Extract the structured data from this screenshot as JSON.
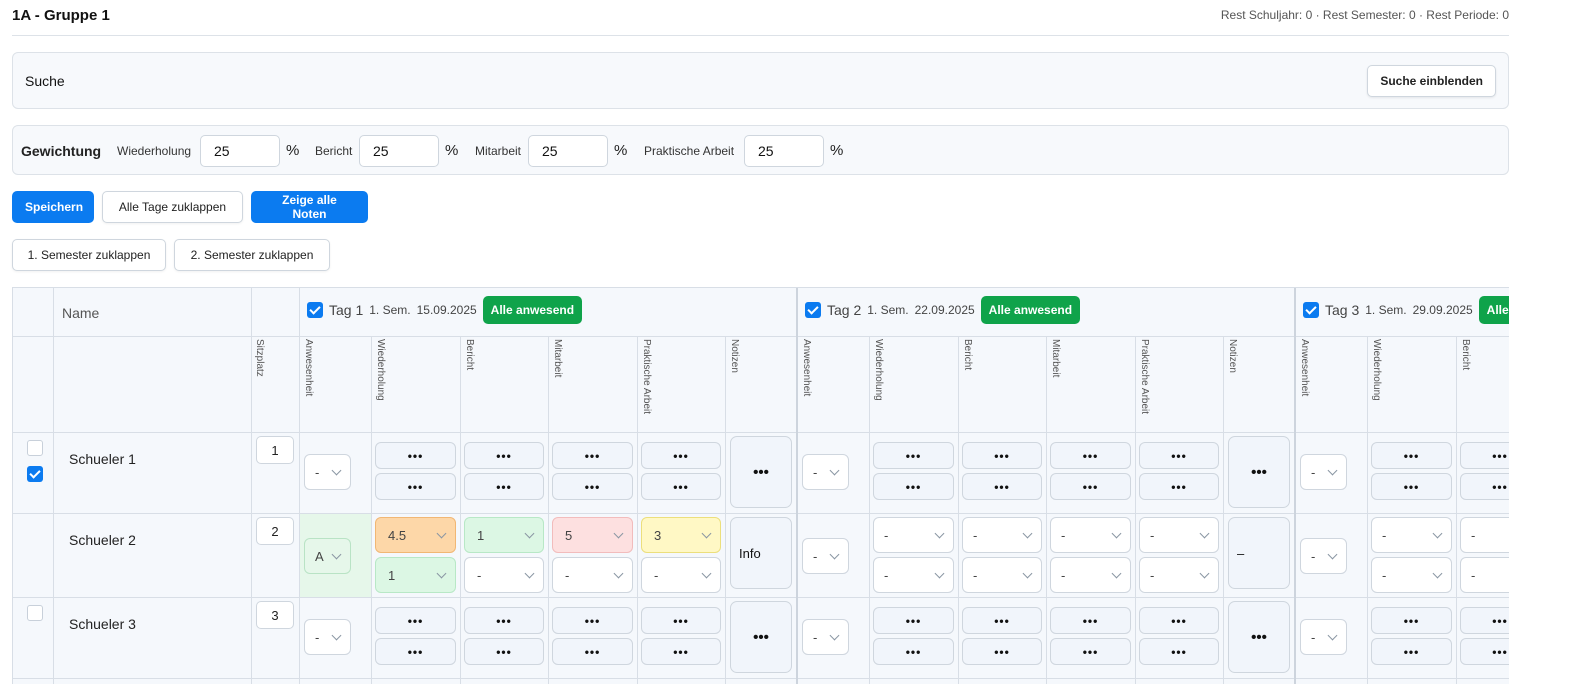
{
  "header": {
    "title": "1A - Gruppe 1",
    "rest_info": "Rest Schuljahr: 0 · Rest Semester: 0 · Rest Periode: 0"
  },
  "search": {
    "title": "Suche",
    "toggle_label": "Suche einblenden"
  },
  "weights": {
    "title": "Gewichtung",
    "items": [
      {
        "label": "Wiederholung",
        "value": "25",
        "unit": "%"
      },
      {
        "label": "Bericht",
        "value": "25",
        "unit": "%"
      },
      {
        "label": "Mitarbeit",
        "value": "25",
        "unit": "%"
      },
      {
        "label": "Praktische Arbeit",
        "value": "25",
        "unit": "%"
      }
    ]
  },
  "toolbar": {
    "save": "Speichern",
    "collapse_days": "Alle Tage zuklappen",
    "show_grades": "Zeige alle Noten",
    "collapse_sem1": "1. Semester zuklappen",
    "collapse_sem2": "2. Semester zuklappen"
  },
  "table": {
    "name_header": "Name",
    "seat_header": "Sitzplatz",
    "columns": [
      "Anwesenheit",
      "Wiederholung",
      "Bericht",
      "Mitarbeit",
      "Praktische Arbeit",
      "Notizen"
    ],
    "days": [
      {
        "label": "Tag 1",
        "semester": "1. Sem.",
        "date": "15.09.2025",
        "action": "Alle anwesend"
      },
      {
        "label": "Tag 2",
        "semester": "1. Sem.",
        "date": "22.09.2025",
        "action": "Alle anwesend"
      },
      {
        "label": "Tag 3",
        "semester": "1. Sem.",
        "date": "29.09.2025",
        "action": "Alle anwesend"
      }
    ],
    "students": [
      {
        "name": "Schueler 1",
        "seat": "1",
        "selected": false
      },
      {
        "name": "Schueler 2",
        "seat": "2",
        "selected": true
      },
      {
        "name": "Schueler 3",
        "seat": "3",
        "selected": false
      }
    ],
    "empty_attendance": "-",
    "collapsed_cell": "•••",
    "empty_value": "-",
    "empty_note": "–",
    "student2_day1": {
      "attendance": "A",
      "wiederholung": [
        "4.5",
        "1"
      ],
      "bericht": [
        "1",
        "-"
      ],
      "mitarbeit": [
        "5",
        "-"
      ],
      "praktische_arbeit": [
        "3",
        "-"
      ],
      "note": "Info"
    }
  },
  "colors": {
    "primary": "#0b7bf0",
    "success": "#0fa34a",
    "grade_orange": "#fdd7a8",
    "grade_green": "#dcf7e4",
    "grade_red": "#fde0e0",
    "grade_yellow": "#fff8c5"
  }
}
